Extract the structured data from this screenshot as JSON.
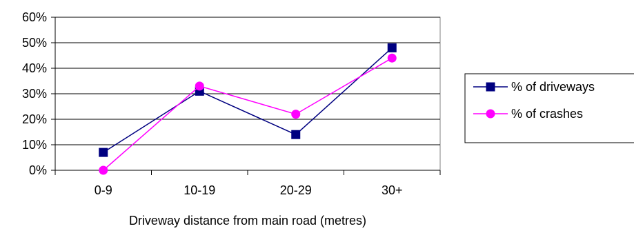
{
  "chart_data": {
    "type": "line",
    "title": "",
    "xlabel": "Driveway distance from main road (metres)",
    "ylabel": "",
    "categories": [
      "0-9",
      "10-19",
      "20-29",
      "30+"
    ],
    "ylim": [
      0,
      60
    ],
    "yticks": [
      "0%",
      "10%",
      "20%",
      "30%",
      "40%",
      "50%",
      "60%"
    ],
    "grid": true,
    "legend_position": "right",
    "series": [
      {
        "name": "% of driveways",
        "values": [
          7,
          31,
          14,
          48
        ],
        "color": "#000080",
        "marker": "square"
      },
      {
        "name": "% of crashes",
        "values": [
          0,
          33,
          22,
          44
        ],
        "color": "#FF00FF",
        "marker": "circle"
      }
    ]
  }
}
